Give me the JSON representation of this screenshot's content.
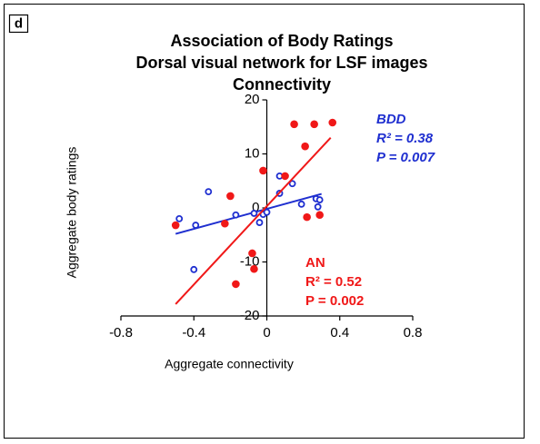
{
  "panel_label": "d",
  "chart_data": {
    "type": "scatter",
    "title": [
      "Association of Body Ratings",
      "Dorsal visual network for LSF images",
      "Connectivity"
    ],
    "xlabel": "Aggregate connectivity",
    "ylabel": "Aggregate body ratings",
    "xlim": [
      -0.8,
      0.8
    ],
    "xticks": [
      -0.8,
      -0.4,
      0,
      0.4,
      0.8
    ],
    "ylim": [
      -20,
      20
    ],
    "yticks": [
      -20,
      -10,
      0,
      10,
      20
    ],
    "series": [
      {
        "name": "BDD",
        "color": "#1f2fd0",
        "marker": "open",
        "x": [
          -0.48,
          -0.39,
          -0.4,
          -0.32,
          -0.17,
          -0.07,
          -0.04,
          -0.02,
          0.0,
          0.07,
          0.07,
          0.14,
          0.19,
          0.27,
          0.28,
          0.29
        ],
        "y": [
          -2.0,
          -3.2,
          -11.4,
          3.0,
          -1.3,
          -1.0,
          -2.7,
          -1.2,
          -0.8,
          5.9,
          2.7,
          4.5,
          0.7,
          1.7,
          0.2,
          1.5
        ],
        "fit": {
          "x": [
            -0.5,
            0.3
          ],
          "y": [
            -4.8,
            2.6
          ]
        },
        "annotations": [
          "BDD",
          "R² = 0.38",
          "P = 0.007"
        ]
      },
      {
        "name": "AN",
        "color": "#f01818",
        "marker": "filled",
        "x": [
          -0.5,
          -0.23,
          -0.2,
          -0.02,
          0.1,
          0.15,
          0.26,
          0.36,
          0.21,
          0.22,
          0.29,
          -0.08,
          -0.07,
          -0.17
        ],
        "y": [
          -3.2,
          -2.9,
          2.2,
          6.9,
          5.9,
          15.5,
          15.5,
          15.8,
          11.4,
          -1.7,
          -1.3,
          -8.4,
          -11.3,
          -14.1
        ],
        "fit": {
          "x": [
            -0.5,
            0.35
          ],
          "y": [
            -17.8,
            13.0
          ]
        },
        "annotations": [
          "AN",
          "R² = 0.52",
          "P = 0.002"
        ]
      }
    ]
  }
}
